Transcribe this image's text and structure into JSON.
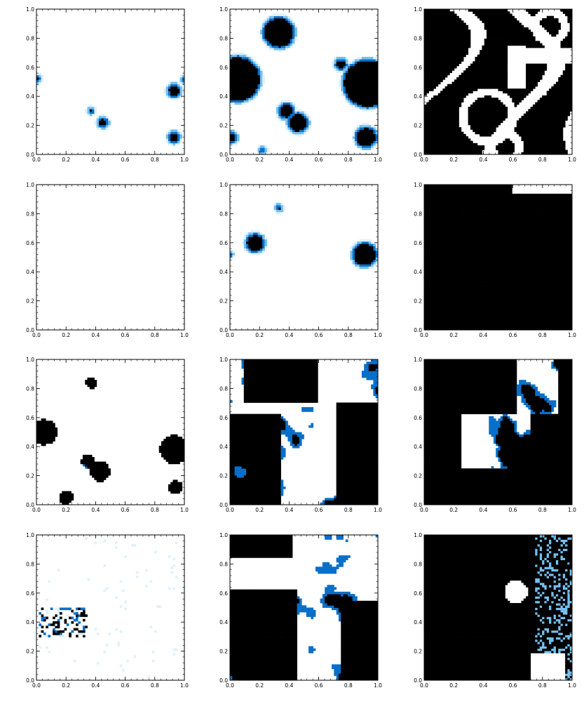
{
  "chart_data": {
    "type": "heatmap",
    "layout": "4x3 grid of panels",
    "colormap": [
      "#ffffff",
      "#dff1fd",
      "#74c0ef",
      "#0a6fc8",
      "#000000"
    ],
    "grid": false,
    "axis": {
      "xlim": [
        0,
        1
      ],
      "ylim": [
        0,
        1
      ],
      "ticks": [
        0.0,
        0.2,
        0.4,
        0.6,
        0.8,
        1.0
      ],
      "tick_labels": [
        "0.0",
        "0.2",
        "0.4",
        "0.6",
        "0.8",
        "1.0"
      ]
    },
    "panels": [
      {
        "row": 1,
        "col": 1,
        "kind": "blobs",
        "blobs": [
          [
            0.0,
            0.52,
            0.025
          ],
          [
            0.45,
            0.22,
            0.035
          ],
          [
            0.37,
            0.3,
            0.018
          ],
          [
            0.93,
            0.44,
            0.045
          ],
          [
            0.93,
            0.12,
            0.04
          ],
          [
            1.0,
            0.52,
            0.02
          ]
        ]
      },
      {
        "row": 1,
        "col": 2,
        "kind": "blobs",
        "blobs": [
          [
            0.33,
            0.84,
            0.11
          ],
          [
            0.05,
            0.52,
            0.16
          ],
          [
            0.38,
            0.3,
            0.055
          ],
          [
            0.46,
            0.22,
            0.07
          ],
          [
            0.75,
            0.62,
            0.04
          ],
          [
            0.93,
            0.49,
            0.17
          ],
          [
            0.92,
            0.12,
            0.075
          ],
          [
            0.22,
            0.03,
            0.02
          ],
          [
            0.01,
            0.12,
            0.04
          ]
        ]
      },
      {
        "row": 1,
        "col": 3,
        "kind": "maze"
      },
      {
        "row": 2,
        "col": 1,
        "kind": "blank"
      },
      {
        "row": 2,
        "col": 2,
        "kind": "blobs",
        "blobs": [
          [
            0.17,
            0.6,
            0.065
          ],
          [
            0.91,
            0.52,
            0.085
          ],
          [
            0.33,
            0.84,
            0.02
          ],
          [
            0.0,
            0.52,
            0.015
          ]
        ]
      },
      {
        "row": 2,
        "col": 3,
        "kind": "arch"
      },
      {
        "row": 3,
        "col": 1,
        "kind": "noisy-low"
      },
      {
        "row": 3,
        "col": 2,
        "kind": "noisy-mid"
      },
      {
        "row": 3,
        "col": 3,
        "kind": "noisy-high"
      },
      {
        "row": 4,
        "col": 1,
        "kind": "speckle"
      },
      {
        "row": 4,
        "col": 2,
        "kind": "noisy-mid2"
      },
      {
        "row": 4,
        "col": 3,
        "kind": "mostly-dark"
      }
    ]
  }
}
